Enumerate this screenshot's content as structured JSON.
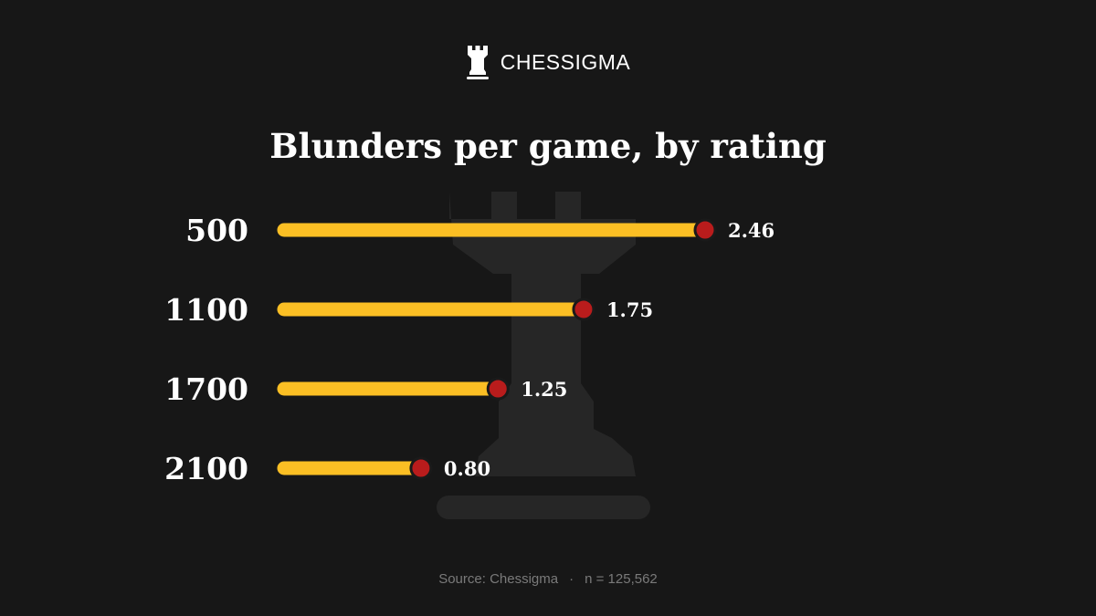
{
  "brand": {
    "name": "CHESSIGMA",
    "logo_icon": "rook-icon"
  },
  "chart_data": {
    "type": "bar",
    "orientation": "horizontal",
    "title": "Blunders per game, by rating",
    "categories": [
      "500",
      "1100",
      "1700",
      "2100"
    ],
    "values": [
      2.46,
      1.75,
      1.25,
      0.8
    ],
    "value_labels": [
      "2.46",
      "1.75",
      "1.25",
      "0.80"
    ],
    "xlim": [
      0,
      2.46
    ],
    "grid": false,
    "legend": "none",
    "colors": {
      "bar": "#fbbf24",
      "marker": "#b91c1c",
      "marker_outline": "#1a1a1a",
      "background_watermark": "#2a2a2a"
    },
    "background_watermark_icon": "rook-icon"
  },
  "footer": {
    "source": "Source: Chessigma",
    "separator": "·",
    "sample": "n = 125,562"
  },
  "colors": {
    "background": "#171717",
    "text": "#ffffff",
    "muted_text": "#7a7a7a"
  }
}
